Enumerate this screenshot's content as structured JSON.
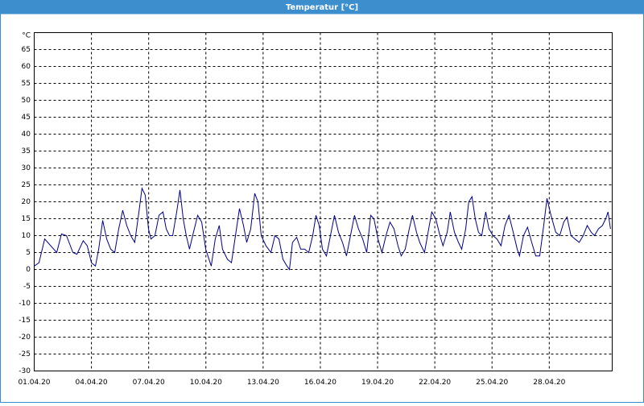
{
  "chart_data": {
    "type": "line",
    "title": "Temperatur [°C]",
    "y_unit": "°C",
    "x": [
      0,
      0.25,
      0.55,
      1.18,
      1.43,
      1.69,
      2.03,
      2.24,
      2.57,
      2.78,
      3.0,
      3.21,
      3.38,
      3.59,
      3.8,
      4.01,
      4.22,
      4.43,
      4.64,
      4.85,
      5.06,
      5.27,
      5.49,
      5.65,
      5.82,
      5.99,
      6.12,
      6.33,
      6.54,
      6.75,
      6.92,
      7.09,
      7.26,
      7.47,
      7.64,
      7.81,
      7.97,
      8.14,
      8.35,
      8.57,
      8.78,
      8.99,
      9.28,
      9.49,
      9.7,
      9.87,
      10.13,
      10.34,
      10.55,
      10.76,
      10.97,
      11.14,
      11.35,
      11.56,
      11.73,
      11.9,
      12.15,
      12.41,
      12.62,
      12.83,
      13.04,
      13.25,
      13.38,
      13.54,
      13.76,
      13.97,
      14.18,
      14.39,
      14.6,
      14.77,
      14.94,
      15.11,
      15.32,
      15.53,
      15.74,
      15.95,
      16.16,
      16.37,
      16.58,
      16.79,
      17.0,
      17.22,
      17.43,
      17.64,
      17.81,
      18.02,
      18.23,
      18.44,
      18.65,
      18.86,
      19.07,
      19.24,
      19.45,
      19.66,
      19.83,
      20.04,
      20.21,
      20.46,
      20.68,
      20.84,
      21.05,
      21.27,
      21.43,
      21.65,
      21.81,
      22.03,
      22.24,
      22.41,
      22.62,
      22.78,
      22.95,
      23.12,
      23.29,
      23.46,
      23.67,
      23.84,
      24.05,
      24.26,
      24.47,
      24.68,
      24.89,
      25.11,
      25.32,
      25.44,
      25.65,
      25.86,
      26.08,
      26.29,
      26.5,
      26.71,
      26.88,
      27.09,
      27.34,
      27.55,
      27.76,
      27.93,
      28.14,
      28.35,
      28.57,
      28.78,
      28.99,
      29.2,
      29.37,
      29.58,
      29.79,
      29.96,
      30.08,
      30.21
    ],
    "values": [
      1,
      2,
      9,
      5,
      10.5,
      10,
      5,
      4.5,
      8.5,
      7,
      2,
      1,
      6,
      14.5,
      9,
      6,
      5,
      12,
      17.5,
      13,
      10,
      8,
      17,
      24,
      22,
      12,
      9,
      10,
      16,
      17,
      12,
      10,
      10,
      17,
      23.5,
      15,
      10,
      6,
      11,
      16,
      14,
      6,
      1,
      9,
      13,
      6,
      3,
      2,
      10,
      18,
      13,
      8,
      12,
      22.5,
      20,
      10,
      7,
      5,
      10,
      9,
      3,
      1,
      0,
      8,
      9.5,
      6,
      6,
      5,
      10,
      16,
      13,
      6,
      4,
      10,
      16,
      11,
      8,
      4,
      10,
      16,
      12,
      9,
      5,
      16,
      15,
      9,
      5,
      10,
      14,
      12,
      7,
      4,
      6,
      12,
      16,
      11,
      8,
      5,
      12,
      17,
      15,
      10,
      7,
      11,
      17,
      11,
      8,
      6,
      12,
      20,
      21.5,
      15,
      11,
      10,
      17,
      12,
      10,
      9,
      7,
      13,
      16,
      11,
      6,
      4,
      10,
      12.5,
      8,
      4,
      4,
      13,
      21,
      16,
      11,
      10,
      14,
      15.5,
      10,
      9,
      8,
      10,
      13,
      11,
      10,
      12,
      13,
      15,
      17,
      12
    ],
    "color": "#00008b",
    "xlim": [
      0,
      30.3
    ],
    "xticks": [
      {
        "value": 0,
        "label": "01.04.20"
      },
      {
        "value": 3,
        "label": "04.04.20"
      },
      {
        "value": 6,
        "label": "07.04.20"
      },
      {
        "value": 9,
        "label": "10.04.20"
      },
      {
        "value": 12,
        "label": "13.04.20"
      },
      {
        "value": 15,
        "label": "16.04.20"
      },
      {
        "value": 18,
        "label": "19.04.20"
      },
      {
        "value": 21,
        "label": "22.04.20"
      },
      {
        "value": 24,
        "label": "25.04.20"
      },
      {
        "value": 27,
        "label": "28.04.20"
      }
    ],
    "ylim": [
      -30,
      70
    ],
    "yticks": [
      -30,
      -25,
      -20,
      -15,
      -10,
      -5,
      0,
      5,
      10,
      15,
      20,
      25,
      30,
      35,
      40,
      45,
      50,
      55,
      60,
      65
    ],
    "grid": true
  }
}
